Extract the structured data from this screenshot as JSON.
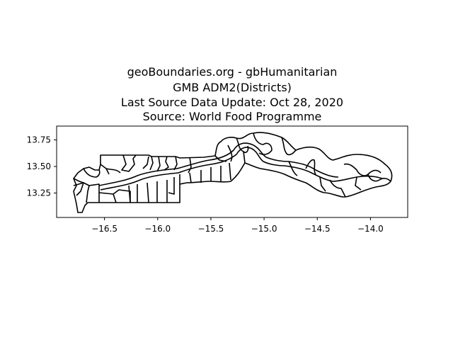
{
  "title_lines": [
    "geoBoundaries.org - gbHumanitarian",
    "GMB ADM2(Districts)",
    "Last Source Data Update: Oct 28, 2020",
    "Source: World Food Programme"
  ],
  "chart_data": {
    "type": "map",
    "xlim": [
      -16.95,
      -13.65
    ],
    "ylim": [
      13.02,
      13.88
    ],
    "x_ticks": [
      {
        "value": -16.5,
        "label": "−16.5"
      },
      {
        "value": -16.0,
        "label": "−16.0"
      },
      {
        "value": -15.5,
        "label": "−15.5"
      },
      {
        "value": -15.0,
        "label": "−15.0"
      },
      {
        "value": -14.5,
        "label": "−14.5"
      },
      {
        "value": -14.0,
        "label": "−14.0"
      }
    ],
    "y_ticks": [
      {
        "value": 13.25,
        "label": "13.25"
      },
      {
        "value": 13.5,
        "label": "13.50"
      },
      {
        "value": 13.75,
        "label": "13.75"
      }
    ],
    "grid": false,
    "line_color": "#000000"
  }
}
